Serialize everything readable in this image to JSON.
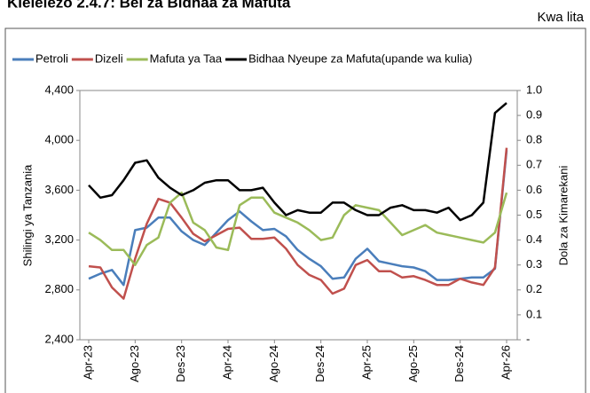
{
  "chart_data": {
    "type": "line",
    "title": "Kielelezo 2.4.7: Bei za Bidhaa za Mafuta",
    "subtitle": "Kwa lita",
    "ylabel": "Shilingi ya Tanzania",
    "y2label": "Dola za Kimarekani",
    "categories": [
      "Apr-23",
      null,
      null,
      null,
      "Ago-23",
      null,
      null,
      null,
      "Des-23",
      null,
      null,
      null,
      "Apr-24",
      null,
      null,
      null,
      "Ago-24",
      null,
      null,
      null,
      "Des-24",
      null,
      null,
      null,
      "Apr-25",
      null,
      null,
      null,
      "Ago-25",
      null,
      null,
      null,
      "Des-24",
      null,
      null,
      null,
      "Apr-26"
    ],
    "ylim": [
      2400,
      4400
    ],
    "yticks": [
      {
        "value": 2400,
        "label": "2,400"
      },
      {
        "value": 2800,
        "label": "2,800"
      },
      {
        "value": 3200,
        "label": "3,200"
      },
      {
        "value": 3600,
        "label": "3,600"
      },
      {
        "value": 4000,
        "label": "4,000"
      },
      {
        "value": 4400,
        "label": "4,400"
      }
    ],
    "y2lim": [
      0,
      1
    ],
    "y2ticks": [
      {
        "value": 0,
        "label": "-"
      },
      0.1,
      0.2,
      0.3,
      0.4,
      0.5,
      0.6,
      0.7,
      0.8,
      0.9,
      {
        "value": 1,
        "label": "1.0"
      }
    ],
    "legend": "top",
    "series": [
      {
        "name": "Petroli",
        "color": "#4a7ebb",
        "values": [
          2890,
          2930,
          2960,
          2840,
          3280,
          3300,
          3380,
          3380,
          3270,
          3200,
          3160,
          3260,
          3360,
          3430,
          3350,
          3280,
          3290,
          3230,
          3120,
          3050,
          2990,
          2890,
          2900,
          3050,
          3130,
          3030,
          3010,
          2990,
          2980,
          2950,
          2880,
          2880,
          2890,
          2900,
          2900,
          2970,
          3920
        ]
      },
      {
        "name": "Dizeli",
        "color": "#c0504d",
        "values": [
          2990,
          2980,
          2820,
          2730,
          3050,
          3330,
          3530,
          3500,
          3380,
          3250,
          3190,
          3240,
          3290,
          3300,
          3210,
          3210,
          3220,
          3130,
          3000,
          2920,
          2880,
          2770,
          2810,
          3000,
          3040,
          2950,
          2950,
          2900,
          2910,
          2880,
          2840,
          2840,
          2890,
          2860,
          2840,
          2980,
          3940
        ]
      },
      {
        "name": "Mafuta ya Taa",
        "color": "#9bbb59",
        "axis": "y2",
        "values": [
          0.43,
          0.4,
          0.36,
          0.36,
          0.3,
          0.38,
          0.41,
          0.55,
          0.59,
          0.47,
          0.44,
          0.37,
          0.36,
          0.54,
          0.57,
          0.57,
          0.51,
          0.49,
          0.47,
          0.44,
          0.4,
          0.41,
          0.5,
          0.54,
          0.53,
          0.52,
          0.47,
          0.42,
          0.44,
          0.46,
          0.43,
          0.42,
          0.41,
          0.4,
          0.39,
          0.43,
          0.59
        ]
      },
      {
        "name": "Bidhaa Nyeupe za Mafuta(upande wa kulia)",
        "color": "#000000",
        "axis": "y2",
        "values": [
          0.62,
          0.57,
          0.58,
          0.64,
          0.71,
          0.72,
          0.65,
          0.61,
          0.58,
          0.6,
          0.63,
          0.64,
          0.64,
          0.6,
          0.6,
          0.61,
          0.55,
          0.5,
          0.52,
          0.51,
          0.51,
          0.55,
          0.55,
          0.52,
          0.5,
          0.5,
          0.53,
          0.54,
          0.52,
          0.52,
          0.51,
          0.53,
          0.48,
          0.5,
          0.55,
          0.91,
          0.95
        ]
      }
    ]
  }
}
